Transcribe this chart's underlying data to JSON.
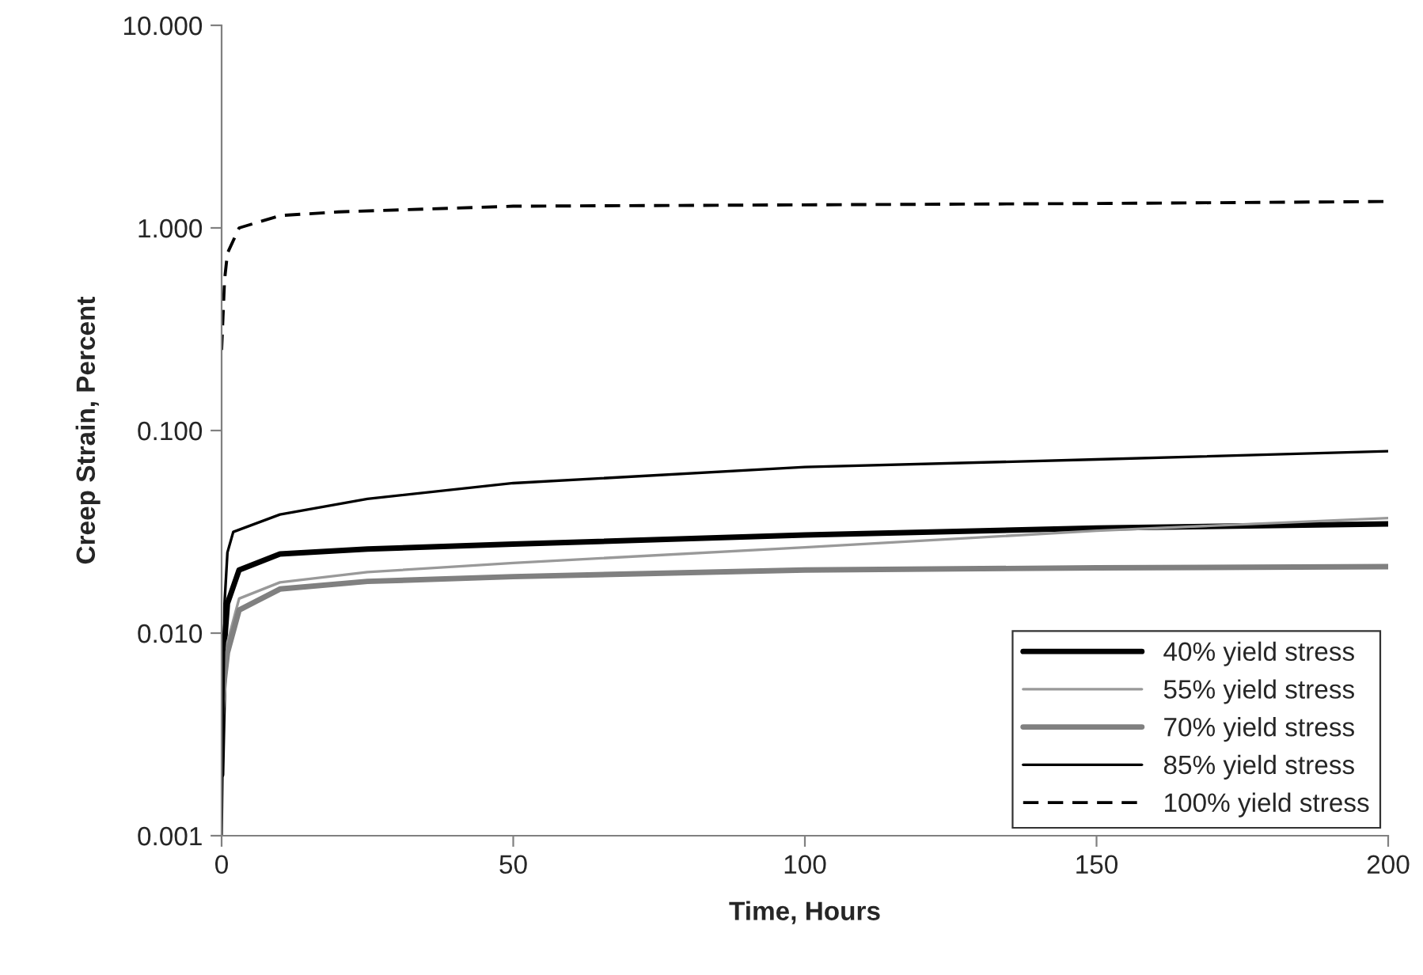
{
  "chart_data": {
    "type": "line",
    "xlabel": "Time, Hours",
    "ylabel": "Creep Strain, Percent",
    "log": true,
    "xlim": [
      0,
      200
    ],
    "xticks": [
      0,
      50,
      100,
      150,
      200
    ],
    "ylim": [
      0.001,
      10
    ],
    "yticks": [
      {
        "value": 0.001,
        "label": "0.001"
      },
      {
        "value": 0.01,
        "label": "0.010"
      },
      {
        "value": 0.1,
        "label": "0.100"
      },
      {
        "value": 1,
        "label": "1.000"
      },
      {
        "value": 10,
        "label": "10.000"
      }
    ],
    "grid": false,
    "legend": "bottom right",
    "series": [
      {
        "name": "40% yield stress",
        "color": "#000000",
        "line_style": "solid",
        "x": [
          0,
          0.5,
          1,
          3,
          10,
          25,
          50,
          100,
          150,
          200
        ],
        "values": [
          0.002,
          0.009,
          0.014,
          0.0205,
          0.0246,
          0.026,
          0.0275,
          0.0305,
          0.033,
          0.0346
        ]
      },
      {
        "name": "55% yield stress",
        "color": "#999999",
        "line_style": "solid",
        "x": [
          0,
          0.5,
          1,
          3,
          10,
          25,
          50,
          100,
          150,
          200
        ],
        "values": [
          0.003,
          0.006,
          0.009,
          0.0148,
          0.0178,
          0.02,
          0.0222,
          0.0265,
          0.032,
          0.037
        ]
      },
      {
        "name": "70% yield stress",
        "color": "#808080",
        "line_style": "solid",
        "x": [
          0,
          0.5,
          1,
          3,
          10,
          25,
          50,
          100,
          150,
          200
        ],
        "values": [
          0.004,
          0.006,
          0.008,
          0.013,
          0.0165,
          0.018,
          0.019,
          0.0205,
          0.021,
          0.0213
        ]
      },
      {
        "name": "85% yield stress",
        "color": "#000000",
        "line_style": "solid",
        "x": [
          0,
          0.5,
          1,
          2,
          10,
          25,
          50,
          100,
          150,
          200
        ],
        "values": [
          0.001,
          0.014,
          0.025,
          0.0316,
          0.0385,
          0.046,
          0.055,
          0.066,
          0.072,
          0.079
        ]
      },
      {
        "name": "100% yield stress",
        "color": "#000000",
        "line_style": "dashed",
        "x": [
          0,
          0.5,
          1,
          3,
          10,
          20,
          50,
          100,
          150,
          200
        ],
        "values": [
          0.25,
          0.55,
          0.75,
          1.0,
          1.15,
          1.2,
          1.28,
          1.3,
          1.32,
          1.35
        ]
      }
    ]
  }
}
